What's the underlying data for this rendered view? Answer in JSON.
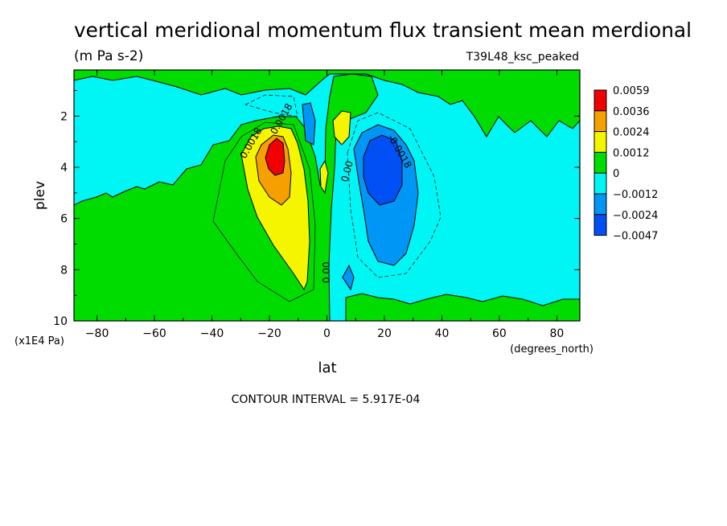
{
  "chart_data": {
    "type": "heatmap",
    "subtype": "filled-contour",
    "title": "vertical meridional momentum flux transient mean merdional",
    "units": "(m Pa s-2)",
    "run_label": "T39L48_ksc_peaked",
    "xlabel": "lat",
    "x_units": "(degrees_north)",
    "ylabel": "plev",
    "y_units": "(x1E4 Pa)",
    "xlim": [
      -88,
      88
    ],
    "ylim": [
      10,
      0.2
    ],
    "x_ticks": [
      -80,
      -60,
      -40,
      -20,
      0,
      20,
      40,
      60,
      80
    ],
    "x_tick_labels": [
      "−80",
      "−60",
      "−40",
      "−20",
      "0",
      "20",
      "40",
      "60",
      "80"
    ],
    "y_ticks": [
      2,
      4,
      6,
      8,
      10
    ],
    "y_tick_labels": [
      "2",
      "4",
      "6",
      "8",
      "10"
    ],
    "contour_interval_text": "CONTOUR INTERVAL = 5.917E-04",
    "colorbar": {
      "levels": [
        "0.0059",
        "0.0036",
        "0.0024",
        "0.0012",
        "0",
        "−0.0012",
        "−0.0024",
        "−0.0047"
      ],
      "colors": [
        "#f00000",
        "#f5a000",
        "#f5f500",
        "#00dc00",
        "#00f5f5",
        "#0096f5",
        "#0050f5"
      ]
    },
    "features": [
      {
        "name": "southern positive lobe",
        "lat_center": -19,
        "plev_center": 3.5,
        "peak": 0.0059
      },
      {
        "name": "northern negative lobe",
        "lat_center": 19,
        "plev_center": 4.0,
        "peak": -0.0047
      }
    ],
    "contour_labels": [
      "0.0018",
      "0.0018",
      "0.00",
      "0.00",
      "-0.0018"
    ]
  }
}
